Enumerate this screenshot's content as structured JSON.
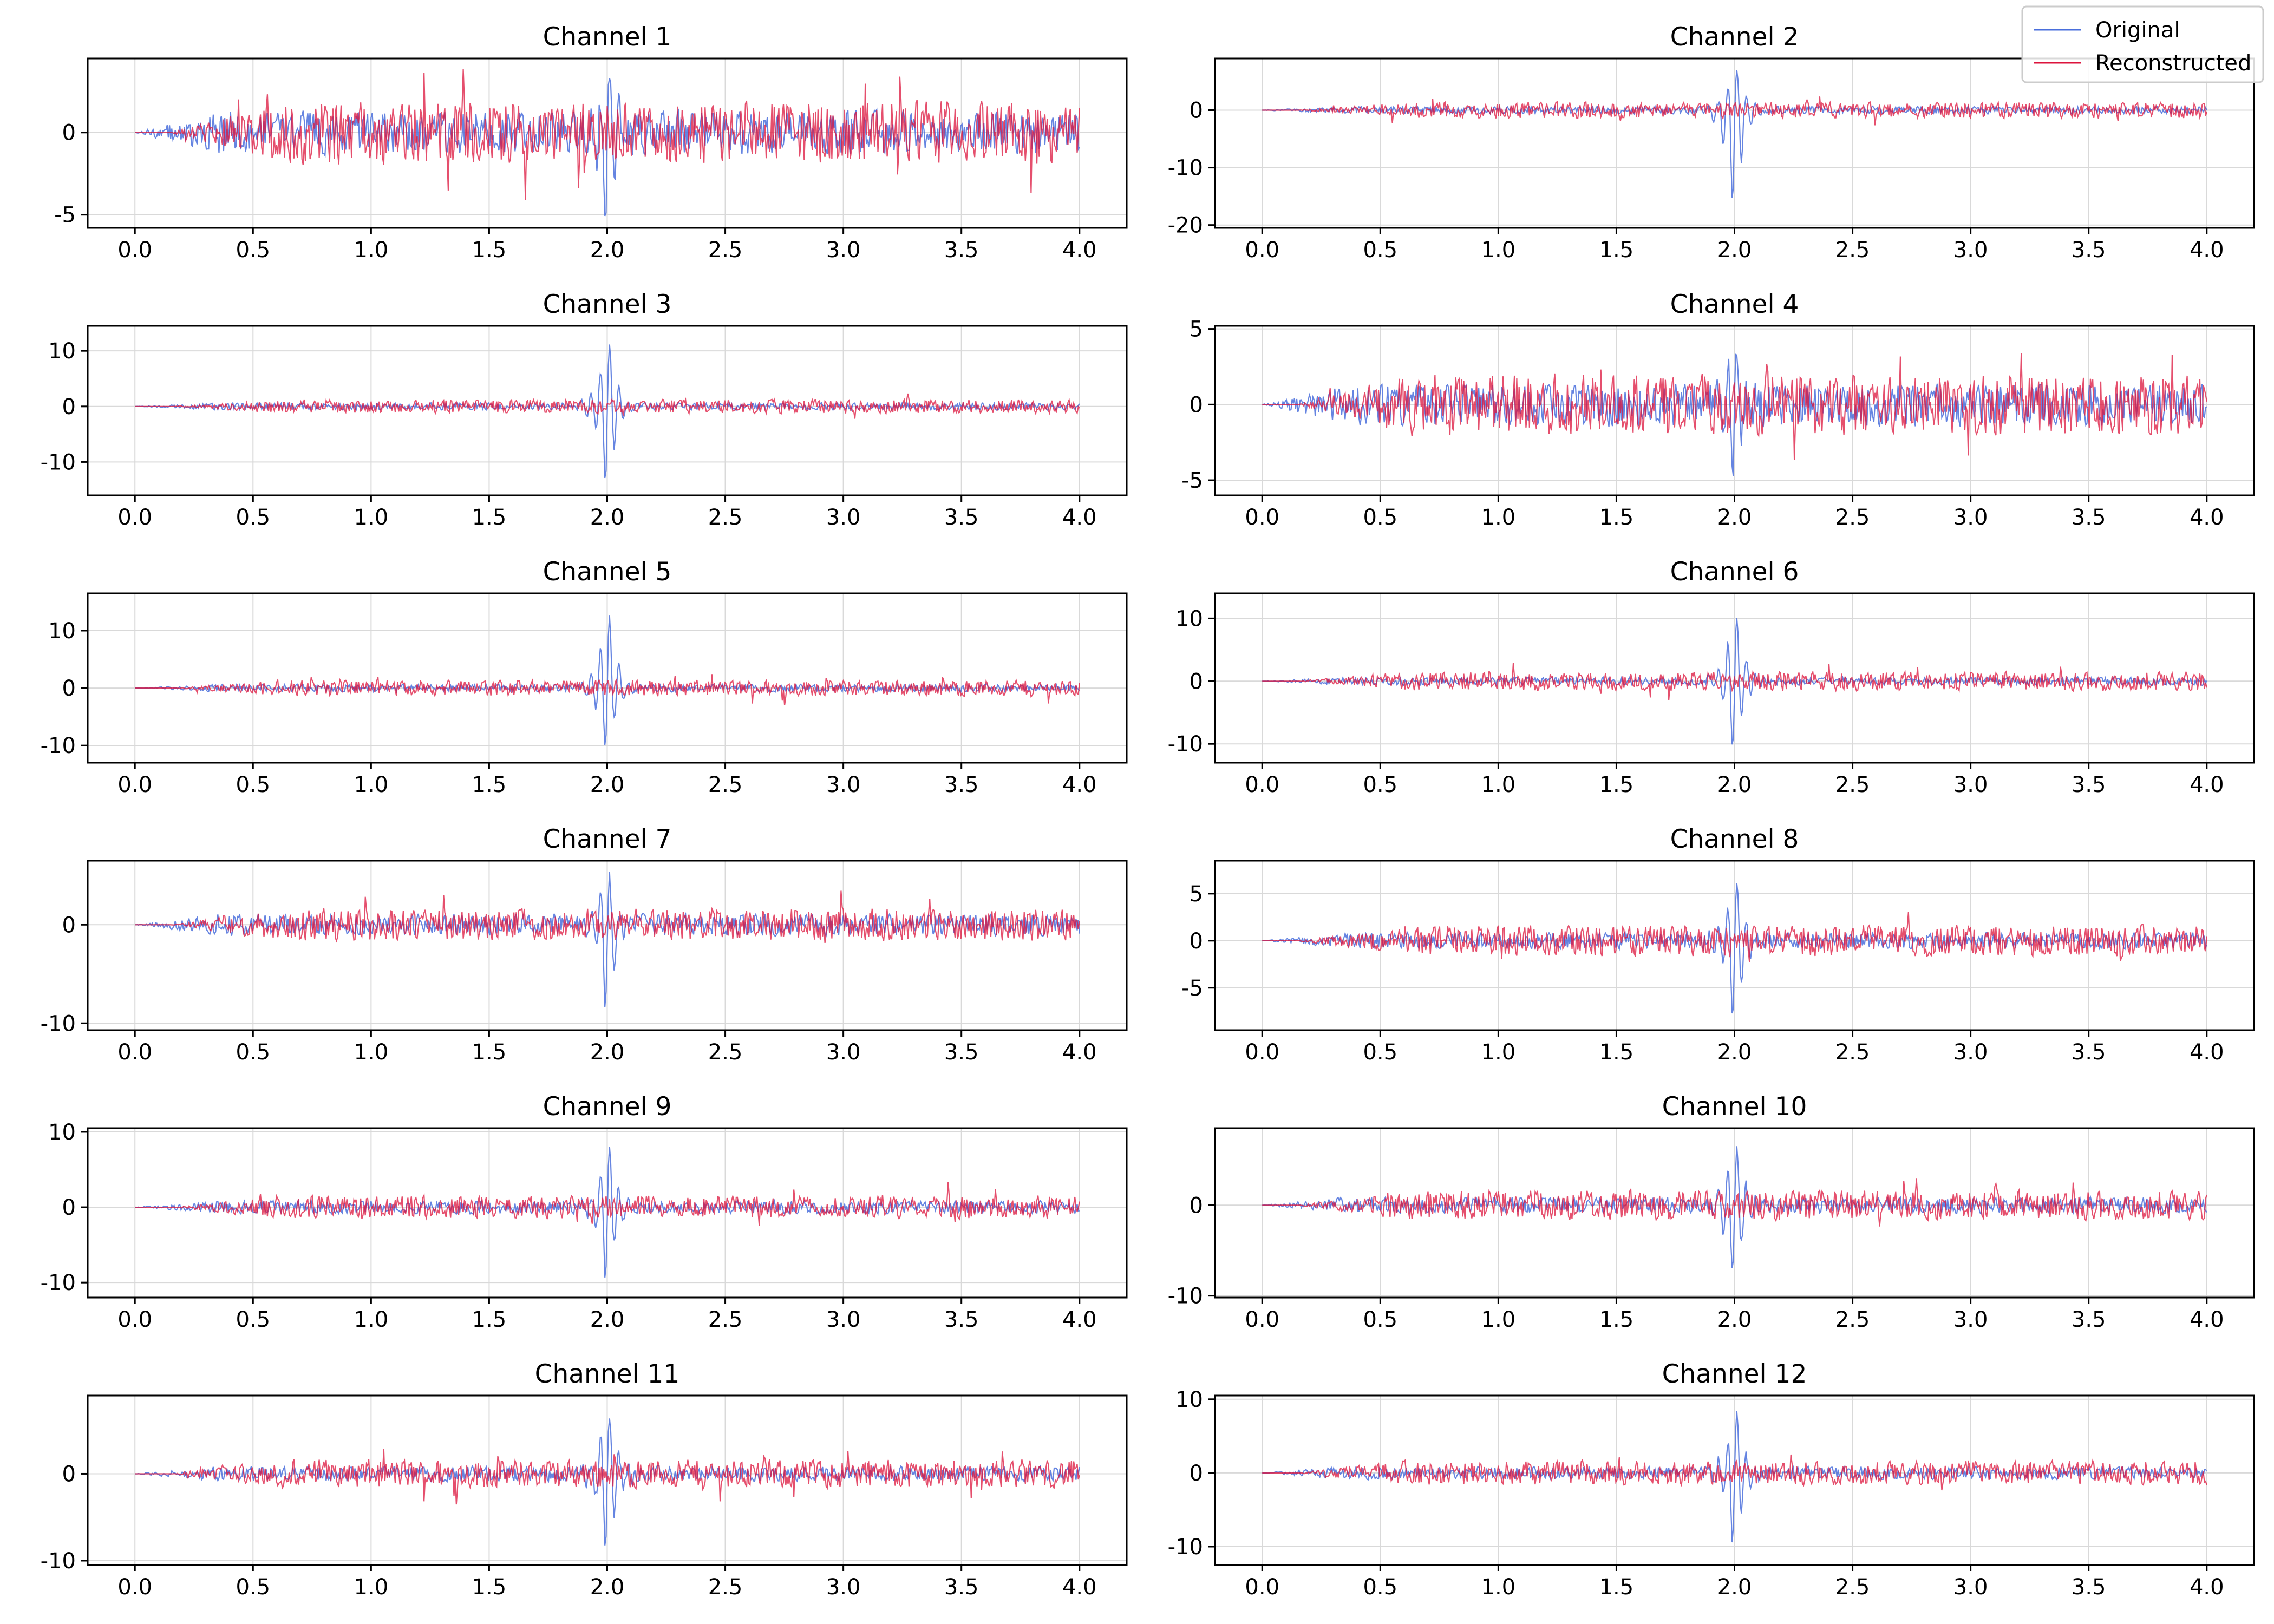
{
  "legend": {
    "location": "top-right",
    "items": [
      {
        "label": "Original",
        "color": "#4a6fdc"
      },
      {
        "label": "Reconstructed",
        "color": "#dc143c"
      }
    ]
  },
  "chart_data": [
    {
      "type": "line",
      "title": "Channel 1",
      "grid": true,
      "xlim": [
        -0.2,
        4.2
      ],
      "ylim": [
        -5.8,
        4.5
      ],
      "xticks": [
        0.0,
        0.5,
        1.0,
        1.5,
        2.0,
        2.5,
        3.0,
        3.5,
        4.0
      ],
      "yticks": [
        -5,
        0
      ],
      "spike": [
        4.5,
        -5.5
      ],
      "noise": [
        1.2,
        1.5
      ],
      "series": [
        {
          "name": "Original",
          "x": [
            0.0,
            4.0
          ],
          "amplitude": 1.2,
          "event_time": 2.0,
          "event_peak": 4.5,
          "event_trough": -5.5
        },
        {
          "name": "Reconstructed",
          "x": [
            0.0,
            4.0
          ],
          "amplitude": 1.5
        }
      ]
    },
    {
      "type": "line",
      "title": "Channel 2",
      "grid": true,
      "xlim": [
        -0.2,
        4.2
      ],
      "ylim": [
        -20.5,
        9
      ],
      "xticks": [
        0.0,
        0.5,
        1.0,
        1.5,
        2.0,
        2.5,
        3.0,
        3.5,
        4.0
      ],
      "yticks": [
        -20,
        -10,
        0
      ],
      "spike": [
        8,
        -19.5
      ],
      "noise": [
        0.6,
        1.1
      ],
      "series": [
        {
          "name": "Original",
          "x": [
            0.0,
            4.0
          ],
          "amplitude": 0.6,
          "event_time": 2.0,
          "event_peak": 8,
          "event_trough": -19.5
        },
        {
          "name": "Reconstructed",
          "x": [
            0.0,
            4.0
          ],
          "amplitude": 1.1
        }
      ]
    },
    {
      "type": "line",
      "title": "Channel 3",
      "grid": true,
      "xlim": [
        -0.2,
        4.2
      ],
      "ylim": [
        -16,
        14.5
      ],
      "xticks": [
        0.0,
        0.5,
        1.0,
        1.5,
        2.0,
        2.5,
        3.0,
        3.5,
        4.0
      ],
      "yticks": [
        -10,
        0,
        10
      ],
      "spike": [
        13.5,
        -15.5
      ],
      "noise": [
        0.6,
        1.0
      ],
      "series": [
        {
          "name": "Original",
          "x": [
            0.0,
            4.0
          ],
          "amplitude": 0.6,
          "event_time": 2.0,
          "event_peak": 13.5,
          "event_trough": -15.5
        },
        {
          "name": "Reconstructed",
          "x": [
            0.0,
            4.0
          ],
          "amplitude": 1.0
        }
      ]
    },
    {
      "type": "line",
      "title": "Channel 4",
      "grid": true,
      "xlim": [
        -0.2,
        4.2
      ],
      "ylim": [
        -6,
        5.2
      ],
      "xticks": [
        0.0,
        0.5,
        1.0,
        1.5,
        2.0,
        2.5,
        3.0,
        3.5,
        4.0
      ],
      "yticks": [
        -5,
        0,
        5
      ],
      "spike": [
        4.5,
        -5.5
      ],
      "noise": [
        1.3,
        1.6
      ],
      "series": [
        {
          "name": "Original",
          "x": [
            0.0,
            4.0
          ],
          "amplitude": 1.3,
          "event_time": 2.0,
          "event_peak": 4.5,
          "event_trough": -5.5
        },
        {
          "name": "Reconstructed",
          "x": [
            0.0,
            4.0
          ],
          "amplitude": 1.6
        }
      ]
    },
    {
      "type": "line",
      "title": "Channel 5",
      "grid": true,
      "xlim": [
        -0.2,
        4.2
      ],
      "ylim": [
        -13,
        16.5
      ],
      "xticks": [
        0.0,
        0.5,
        1.0,
        1.5,
        2.0,
        2.5,
        3.0,
        3.5,
        4.0
      ],
      "yticks": [
        -10,
        0,
        10
      ],
      "spike": [
        15,
        -12
      ],
      "noise": [
        0.6,
        1.1
      ],
      "series": [
        {
          "name": "Original",
          "x": [
            0.0,
            4.0
          ],
          "amplitude": 0.6,
          "event_time": 2.0,
          "event_peak": 15,
          "event_trough": -12
        },
        {
          "name": "Reconstructed",
          "x": [
            0.0,
            4.0
          ],
          "amplitude": 1.1
        }
      ]
    },
    {
      "type": "line",
      "title": "Channel 6",
      "grid": true,
      "xlim": [
        -0.2,
        4.2
      ],
      "ylim": [
        -13,
        14
      ],
      "xticks": [
        0.0,
        0.5,
        1.0,
        1.5,
        2.0,
        2.5,
        3.0,
        3.5,
        4.0
      ],
      "yticks": [
        -10,
        0,
        10
      ],
      "spike": [
        12.5,
        -12
      ],
      "noise": [
        0.6,
        1.2
      ],
      "series": [
        {
          "name": "Original",
          "x": [
            0.0,
            4.0
          ],
          "amplitude": 0.6,
          "event_time": 2.0,
          "event_peak": 12.5,
          "event_trough": -12
        },
        {
          "name": "Reconstructed",
          "x": [
            0.0,
            4.0
          ],
          "amplitude": 1.2
        }
      ]
    },
    {
      "type": "line",
      "title": "Channel 7",
      "grid": true,
      "xlim": [
        -0.2,
        4.2
      ],
      "ylim": [
        -10.7,
        6.5
      ],
      "xticks": [
        0.0,
        0.5,
        1.0,
        1.5,
        2.0,
        2.5,
        3.0,
        3.5,
        4.0
      ],
      "yticks": [
        -10,
        0
      ],
      "spike": [
        6,
        -10
      ],
      "noise": [
        1.0,
        1.3
      ],
      "series": [
        {
          "name": "Original",
          "x": [
            0.0,
            4.0
          ],
          "amplitude": 1.0,
          "event_time": 2.0,
          "event_peak": 6,
          "event_trough": -10
        },
        {
          "name": "Reconstructed",
          "x": [
            0.0,
            4.0
          ],
          "amplitude": 1.3
        }
      ]
    },
    {
      "type": "line",
      "title": "Channel 8",
      "grid": true,
      "xlim": [
        -0.2,
        4.2
      ],
      "ylim": [
        -9.5,
        8.5
      ],
      "xticks": [
        0.0,
        0.5,
        1.0,
        1.5,
        2.0,
        2.5,
        3.0,
        3.5,
        4.0
      ],
      "yticks": [
        -5,
        0,
        5
      ],
      "spike": [
        7.5,
        -9
      ],
      "noise": [
        0.8,
        1.3
      ],
      "series": [
        {
          "name": "Original",
          "x": [
            0.0,
            4.0
          ],
          "amplitude": 0.8,
          "event_time": 2.0,
          "event_peak": 7.5,
          "event_trough": -9
        },
        {
          "name": "Reconstructed",
          "x": [
            0.0,
            4.0
          ],
          "amplitude": 1.3
        }
      ]
    },
    {
      "type": "line",
      "title": "Channel 9",
      "grid": true,
      "xlim": [
        -0.2,
        4.2
      ],
      "ylim": [
        -12,
        10.5
      ],
      "xticks": [
        0.0,
        0.5,
        1.0,
        1.5,
        2.0,
        2.5,
        3.0,
        3.5,
        4.0
      ],
      "yticks": [
        -10,
        0,
        10
      ],
      "spike": [
        9.5,
        -11
      ],
      "noise": [
        0.8,
        1.2
      ],
      "series": [
        {
          "name": "Original",
          "x": [
            0.0,
            4.0
          ],
          "amplitude": 0.8,
          "event_time": 2.0,
          "event_peak": 9.5,
          "event_trough": -11
        },
        {
          "name": "Reconstructed",
          "x": [
            0.0,
            4.0
          ],
          "amplitude": 1.2
        }
      ]
    },
    {
      "type": "line",
      "title": "Channel 10",
      "grid": true,
      "xlim": [
        -0.2,
        4.2
      ],
      "ylim": [
        -10.2,
        8.5
      ],
      "xticks": [
        0.0,
        0.5,
        1.0,
        1.5,
        2.0,
        2.5,
        3.0,
        3.5,
        4.0
      ],
      "yticks": [
        -10,
        0
      ],
      "spike": [
        8,
        -9.5
      ],
      "noise": [
        0.8,
        1.3
      ],
      "series": [
        {
          "name": "Original",
          "x": [
            0.0,
            4.0
          ],
          "amplitude": 0.8,
          "event_time": 2.0,
          "event_peak": 8,
          "event_trough": -9.5
        },
        {
          "name": "Reconstructed",
          "x": [
            0.0,
            4.0
          ],
          "amplitude": 1.3
        }
      ]
    },
    {
      "type": "line",
      "title": "Channel 11",
      "grid": true,
      "xlim": [
        -0.2,
        4.2
      ],
      "ylim": [
        -10.5,
        9
      ],
      "xticks": [
        0.0,
        0.5,
        1.0,
        1.5,
        2.0,
        2.5,
        3.0,
        3.5,
        4.0
      ],
      "yticks": [
        -10,
        0
      ],
      "spike": [
        8.5,
        -10
      ],
      "noise": [
        0.8,
        1.3
      ],
      "series": [
        {
          "name": "Original",
          "x": [
            0.0,
            4.0
          ],
          "amplitude": 0.8,
          "event_time": 2.0,
          "event_peak": 8.5,
          "event_trough": -10
        },
        {
          "name": "Reconstructed",
          "x": [
            0.0,
            4.0
          ],
          "amplitude": 1.3
        }
      ]
    },
    {
      "type": "line",
      "title": "Channel 12",
      "grid": true,
      "xlim": [
        -0.2,
        4.2
      ],
      "ylim": [
        -12.5,
        10.5
      ],
      "xticks": [
        0.0,
        0.5,
        1.0,
        1.5,
        2.0,
        2.5,
        3.0,
        3.5,
        4.0
      ],
      "yticks": [
        -10,
        0,
        10
      ],
      "spike": [
        9.5,
        -11
      ],
      "noise": [
        0.8,
        1.3
      ],
      "series": [
        {
          "name": "Original",
          "x": [
            0.0,
            4.0
          ],
          "amplitude": 0.8,
          "event_time": 2.0,
          "event_peak": 9.5,
          "event_trough": -11
        },
        {
          "name": "Reconstructed",
          "x": [
            0.0,
            4.0
          ],
          "amplitude": 1.3
        }
      ]
    }
  ]
}
